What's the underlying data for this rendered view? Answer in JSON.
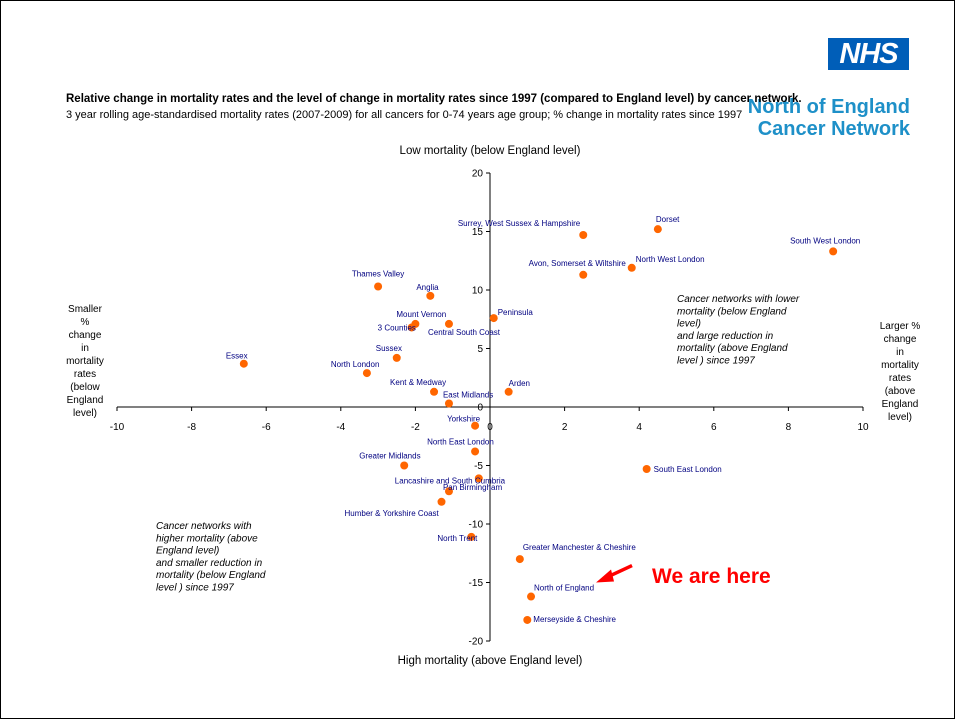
{
  "logo": {
    "text": "NHS",
    "network_line1": "North of England",
    "network_line2": "Cancer Network"
  },
  "colors": {
    "nhs_blue": "#005EB8",
    "network_blue": "#1E90C8",
    "point": "#FF6600",
    "label": "#000080",
    "callout": "#FF0000"
  },
  "chart_data": {
    "type": "scatter",
    "title": "Relative change in mortality rates and the level of change in mortality rates since 1997 (compared to England level) by cancer network.",
    "subtitle": "3 year rolling age-standardised mortality rates (2007-2009) for all cancers for 0-74 years age group; % change in mortality rates since 1997",
    "xlim": [
      -10,
      10
    ],
    "ylim": [
      -20,
      20
    ],
    "x_ticks": [
      -10,
      -8,
      -6,
      -4,
      -2,
      0,
      2,
      4,
      6,
      8,
      10
    ],
    "y_ticks": [
      -20,
      -15,
      -10,
      -5,
      0,
      5,
      10,
      15,
      20
    ],
    "grid": false,
    "axis_labels": {
      "top": "Low mortality (below England level)",
      "bottom": "High mortality (above England level)",
      "left": [
        "Smaller",
        "%",
        "change",
        "in",
        "mortality",
        "rates",
        "(below",
        "England",
        "level)"
      ],
      "right": [
        "Larger %",
        "change",
        "in",
        "mortality",
        "rates",
        "(above",
        "England",
        "level)"
      ]
    },
    "annotations": {
      "upper_right": [
        "Cancer networks with lower",
        "mortality (below England",
        "level)",
        "and large reduction in",
        "mortality (above England",
        "level ) since 1997"
      ],
      "lower_left": [
        "Cancer networks with",
        "higher mortality (above",
        "England level)",
        "and smaller reduction in",
        "mortality (below England",
        "level ) since 1997"
      ]
    },
    "points": [
      {
        "name": "Surrey, West Sussex & Hampshire",
        "x": 2.5,
        "y": 14.7
      },
      {
        "name": "Dorset",
        "x": 4.5,
        "y": 15.2
      },
      {
        "name": "South West London",
        "x": 9.2,
        "y": 13.3
      },
      {
        "name": "Avon, Somerset & Wiltshire",
        "x": 2.5,
        "y": 11.3
      },
      {
        "name": "North West London",
        "x": 3.8,
        "y": 11.9
      },
      {
        "name": "Thames Valley",
        "x": -3.0,
        "y": 10.3
      },
      {
        "name": "Anglia",
        "x": -1.6,
        "y": 9.5
      },
      {
        "name": "Peninsula",
        "x": 0.1,
        "y": 7.6
      },
      {
        "name": "Mount Vernon",
        "x": -2.0,
        "y": 7.1
      },
      {
        "name": "3 Counties",
        "x": -2.1,
        "y": 6.8
      },
      {
        "name": "Central South Coast",
        "x": -1.1,
        "y": 7.1
      },
      {
        "name": "Sussex",
        "x": -2.5,
        "y": 4.2
      },
      {
        "name": "Essex",
        "x": -6.6,
        "y": 3.7
      },
      {
        "name": "North London",
        "x": -3.3,
        "y": 2.9
      },
      {
        "name": "Kent & Medway",
        "x": -1.5,
        "y": 1.3
      },
      {
        "name": "Arden",
        "x": 0.5,
        "y": 1.3
      },
      {
        "name": "East Midlands",
        "x": -1.1,
        "y": 0.3
      },
      {
        "name": "Yorkshire",
        "x": -0.4,
        "y": -1.6
      },
      {
        "name": "North East London",
        "x": -0.4,
        "y": -3.8
      },
      {
        "name": "Greater Midlands",
        "x": -2.3,
        "y": -5.0
      },
      {
        "name": "South East London",
        "x": 4.2,
        "y": -5.3
      },
      {
        "name": "Lancashire and South Cumbria",
        "x": -0.3,
        "y": -6.1
      },
      {
        "name": "Pan Birmingham",
        "x": -1.1,
        "y": -7.2
      },
      {
        "name": "Humber & Yorkshire Coast",
        "x": -1.3,
        "y": -8.1
      },
      {
        "name": "North Trent",
        "x": -0.5,
        "y": -11.1
      },
      {
        "name": "Greater Manchester & Cheshire",
        "x": 0.8,
        "y": -13.0
      },
      {
        "name": "North of England",
        "x": 1.1,
        "y": -16.2
      },
      {
        "name": "Merseyside & Cheshire",
        "x": 1.0,
        "y": -18.2
      }
    ],
    "callout": {
      "text": "We are here",
      "target": "North of England"
    }
  }
}
